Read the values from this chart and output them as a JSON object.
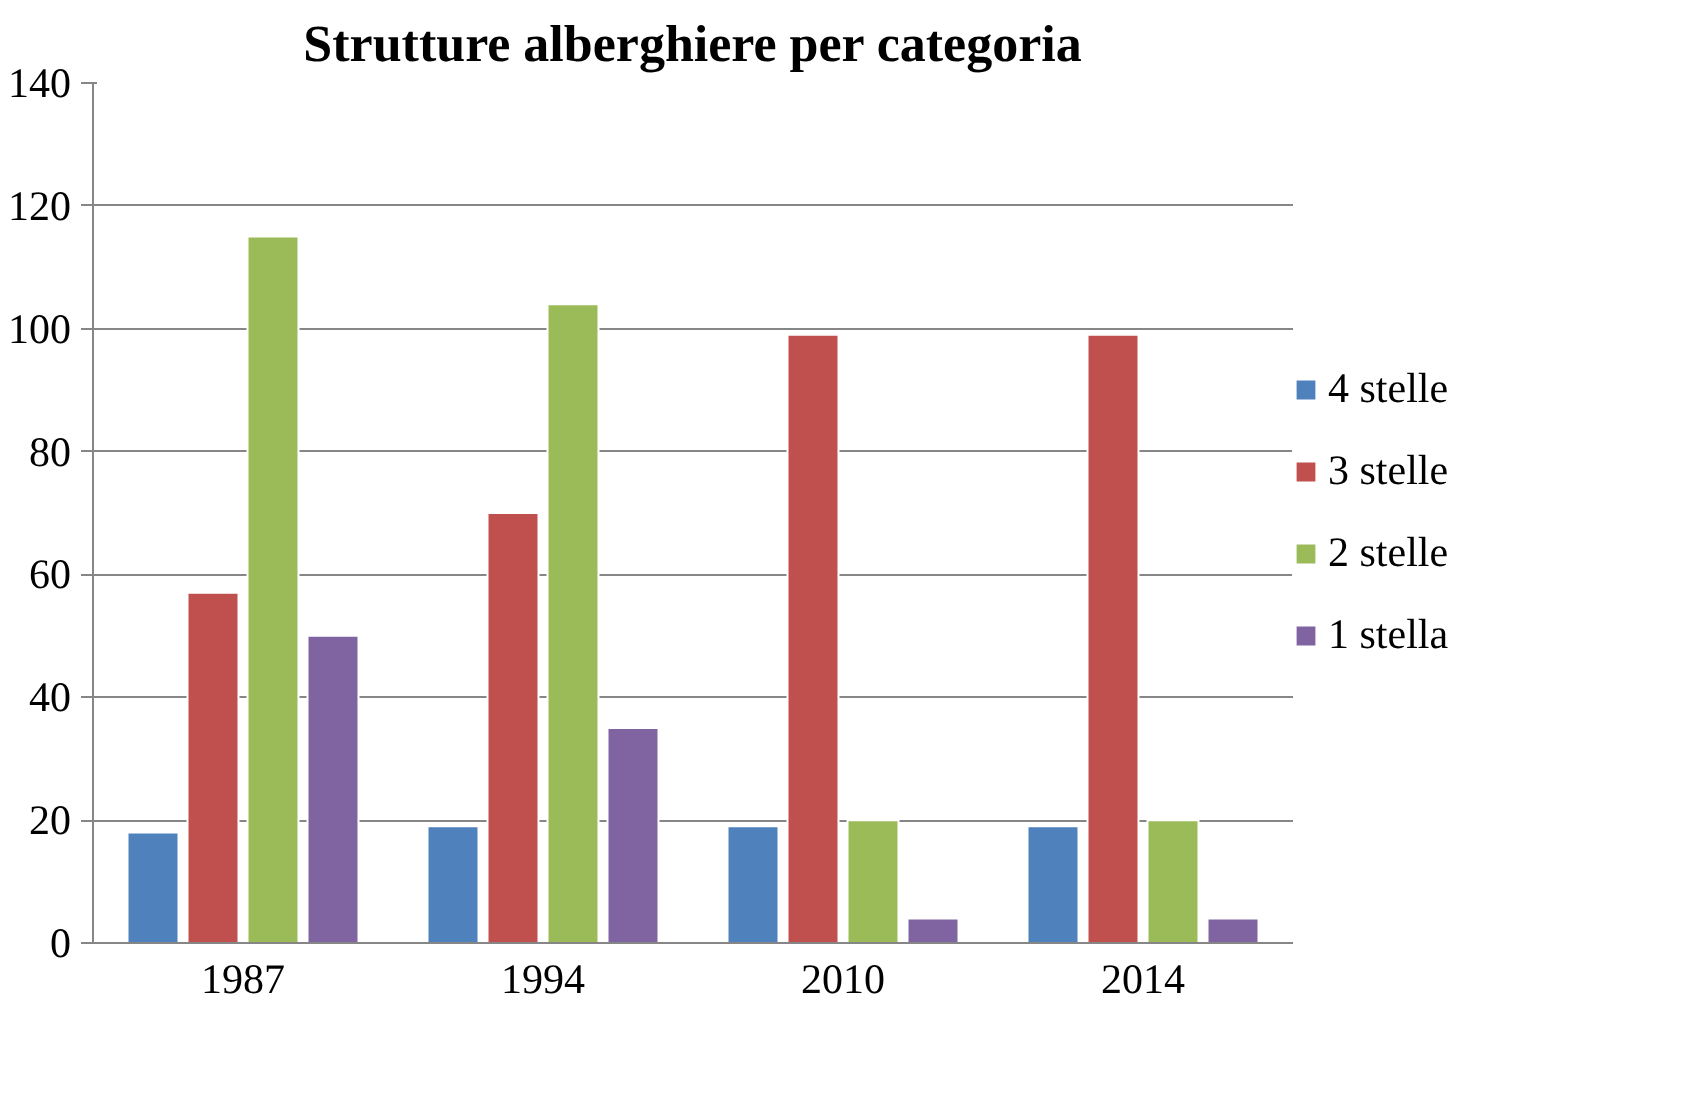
{
  "chart_data": {
    "type": "bar",
    "title": "Strutture alberghiere per categoria",
    "categories": [
      "1987",
      "1994",
      "2010",
      "2014"
    ],
    "series": [
      {
        "name": "4 stelle",
        "color": "#4f81bd",
        "values": [
          18,
          19,
          19,
          19
        ]
      },
      {
        "name": "3 stelle",
        "color": "#c0504d",
        "values": [
          57,
          70,
          99,
          99
        ]
      },
      {
        "name": "2 stelle",
        "color": "#9bbb59",
        "values": [
          115,
          104,
          20,
          20
        ]
      },
      {
        "name": "1 stella",
        "color": "#8064a2",
        "values": [
          50,
          35,
          4,
          4
        ]
      }
    ],
    "ylim": [
      0,
      140
    ],
    "yticks": [
      0,
      20,
      40,
      60,
      80,
      100,
      120,
      140
    ],
    "grid": "y",
    "legend": "right"
  }
}
